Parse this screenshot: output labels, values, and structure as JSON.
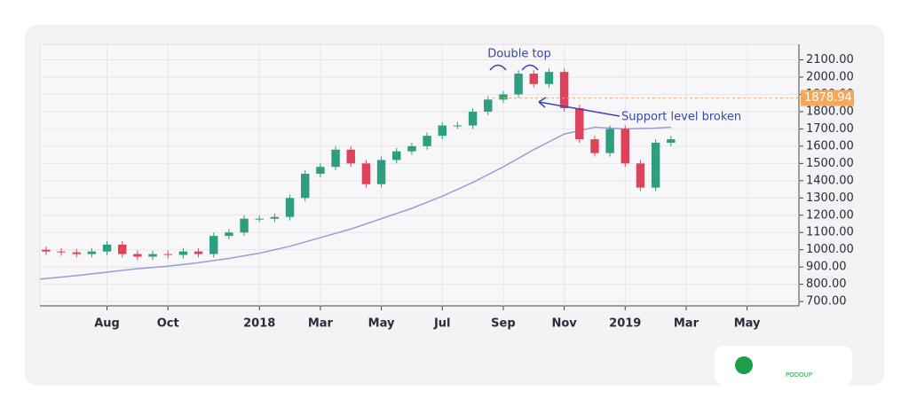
{
  "chart_data": {
    "type": "candlestick",
    "xlim": [
      -1.2,
      23.7
    ],
    "xticks": [
      {
        "value": 1,
        "label": "Aug"
      },
      {
        "value": 3,
        "label": "Oct"
      },
      {
        "value": 6,
        "label": "2018"
      },
      {
        "value": 8,
        "label": "Mar"
      },
      {
        "value": 10,
        "label": "May"
      },
      {
        "value": 12,
        "label": "Jul"
      },
      {
        "value": 14,
        "label": "Sep"
      },
      {
        "value": 16,
        "label": "Nov"
      },
      {
        "value": 18,
        "label": "2019"
      },
      {
        "value": 20,
        "label": "Mar"
      },
      {
        "value": 22,
        "label": "May"
      }
    ],
    "ylim": [
      675,
      2190
    ],
    "yticks": [
      {
        "value": 700,
        "label": "700.00"
      },
      {
        "value": 800,
        "label": "800.00"
      },
      {
        "value": 900,
        "label": "900.00"
      },
      {
        "value": 1000,
        "label": "1000.00"
      },
      {
        "value": 1100,
        "label": "1100.00"
      },
      {
        "value": 1200,
        "label": "1200.00"
      },
      {
        "value": 1300,
        "label": "1300.00"
      },
      {
        "value": 1400,
        "label": "1400.00"
      },
      {
        "value": 1500,
        "label": "1500.00"
      },
      {
        "value": 1600,
        "label": "1600.00"
      },
      {
        "value": 1700,
        "label": "1700.00"
      },
      {
        "value": 1800,
        "label": "1800.00"
      },
      {
        "value": 1900,
        "label": "1900.00"
      },
      {
        "value": 2000,
        "label": "2000.00"
      },
      {
        "value": 2100,
        "label": "2100.00"
      }
    ],
    "grid": true,
    "up_color": "#2e9e7e",
    "down_color": "#e0425a",
    "x": [
      -1,
      -0.5,
      0,
      0.5,
      1,
      1.5,
      2,
      2.5,
      3,
      3.5,
      4,
      4.5,
      5,
      5.5,
      6,
      6.5,
      7,
      7.5,
      8,
      8.5,
      9,
      9.5,
      10,
      10.5,
      11,
      11.5,
      12,
      12.5,
      13,
      13.5,
      14,
      14.5,
      15,
      15.5,
      16,
      16.5,
      17,
      17.5,
      18,
      18.5,
      19,
      19.5
    ],
    "open": [
      1000,
      990,
      985,
      975,
      990,
      1030,
      975,
      960,
      975,
      970,
      990,
      975,
      1080,
      1100,
      1180,
      1180,
      1190,
      1300,
      1440,
      1480,
      1580,
      1500,
      1380,
      1520,
      1570,
      1600,
      1660,
      1720,
      1720,
      1800,
      1870,
      1900,
      2020,
      1960,
      2030,
      1820,
      1640,
      1560,
      1700,
      1500,
      1360,
      1620
    ],
    "high": [
      1020,
      1010,
      1005,
      1010,
      1050,
      1050,
      995,
      995,
      995,
      1010,
      1010,
      1100,
      1120,
      1200,
      1200,
      1210,
      1320,
      1460,
      1500,
      1600,
      1600,
      1520,
      1540,
      1590,
      1620,
      1680,
      1740,
      1740,
      1820,
      1890,
      1920,
      2040,
      2040,
      2050,
      2050,
      1840,
      1660,
      1720,
      1720,
      1520,
      1640,
      1660
    ],
    "low": [
      970,
      965,
      955,
      955,
      970,
      955,
      940,
      940,
      950,
      950,
      955,
      955,
      1060,
      1080,
      1160,
      1160,
      1170,
      1280,
      1420,
      1460,
      1480,
      1360,
      1360,
      1500,
      1550,
      1580,
      1640,
      1700,
      1700,
      1780,
      1850,
      1880,
      1940,
      1940,
      1800,
      1620,
      1540,
      1540,
      1480,
      1340,
      1340,
      1600
    ],
    "close": [
      990,
      985,
      975,
      990,
      1030,
      975,
      960,
      975,
      970,
      990,
      975,
      1080,
      1100,
      1180,
      1180,
      1190,
      1300,
      1440,
      1480,
      1580,
      1500,
      1380,
      1520,
      1570,
      1600,
      1660,
      1720,
      1720,
      1800,
      1870,
      1900,
      2020,
      1960,
      2030,
      1820,
      1640,
      1560,
      1700,
      1500,
      1360,
      1620,
      1640
    ],
    "moving_average": {
      "color": "#9c9cd4",
      "x": [
        -1.2,
        0,
        1,
        2,
        3,
        4,
        5,
        6,
        7,
        8,
        9,
        10,
        11,
        12,
        13,
        14,
        15,
        16,
        17,
        18,
        19,
        19.5
      ],
      "values": [
        830,
        850,
        870,
        890,
        905,
        925,
        950,
        980,
        1020,
        1070,
        1120,
        1180,
        1240,
        1310,
        1390,
        1480,
        1580,
        1670,
        1710,
        1700,
        1705,
        1710
      ]
    },
    "support_level": 1878.94,
    "support_color": "#f5a85a",
    "annotations": [
      "Double top",
      "Support level broken"
    ],
    "logo": "PODOUP"
  }
}
